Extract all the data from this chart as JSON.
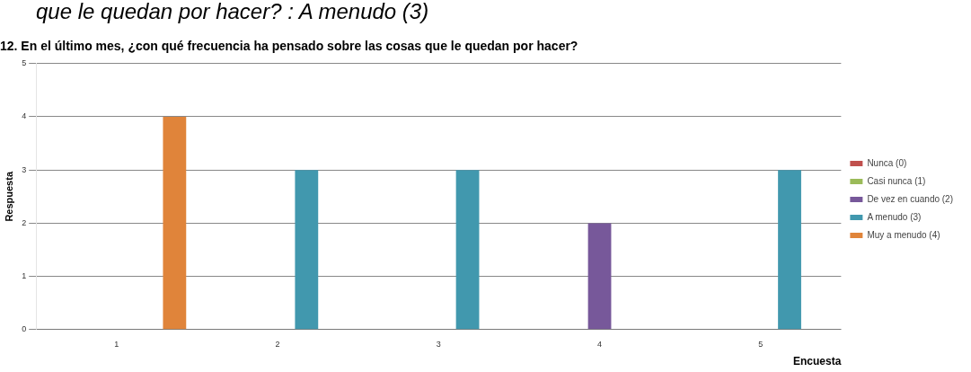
{
  "chart_data": {
    "type": "bar",
    "title": "12. En el último mes, ¿con qué frecuencia ha pensado sobre las cosas que le quedan por hacer?",
    "xlabel": "Encuesta",
    "ylabel": "Respuesta",
    "annotations": [
      "que le quedan por hacer? : A menudo (3)"
    ],
    "categories": [
      "1",
      "2",
      "3",
      "4",
      "5"
    ],
    "series": [
      {
        "name": "Nunca (0)",
        "color": "#c0504d",
        "values": [
          null,
          null,
          null,
          null,
          null
        ]
      },
      {
        "name": "Casi nunca (1)",
        "color": "#9bbb59",
        "values": [
          null,
          null,
          null,
          null,
          null
        ]
      },
      {
        "name": "De vez en cuando (2)",
        "color": "#77589a",
        "values": [
          null,
          null,
          null,
          2,
          null
        ]
      },
      {
        "name": "A menudo (3)",
        "color": "#4198ae",
        "values": [
          null,
          3,
          3,
          null,
          3
        ]
      },
      {
        "name": "Muy a menudo (4)",
        "color": "#e0843a",
        "values": [
          4,
          null,
          null,
          null,
          null
        ]
      }
    ],
    "ylim": [
      0,
      5
    ],
    "yticks": [
      0,
      1,
      2,
      3,
      4,
      5
    ],
    "grid": "y",
    "legend": "right"
  }
}
